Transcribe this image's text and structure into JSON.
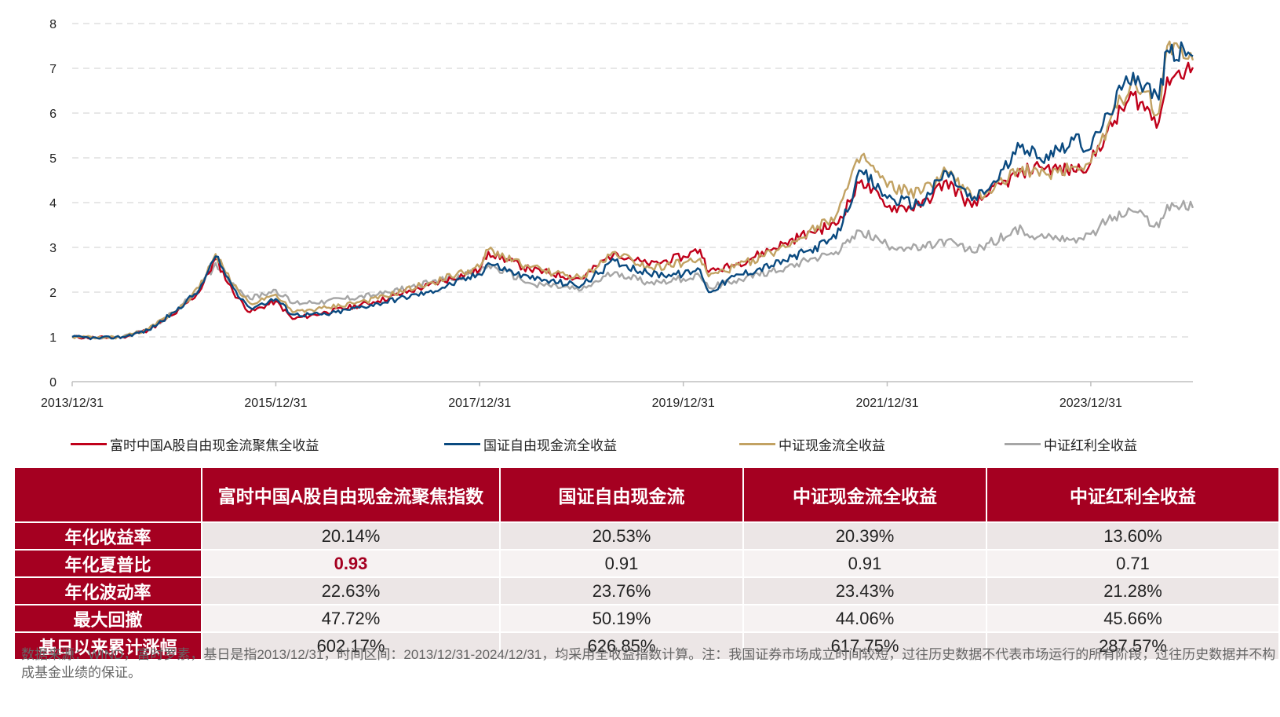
{
  "chart_data": {
    "type": "line",
    "ylim": [
      0,
      8
    ],
    "yticks": [
      0,
      1,
      2,
      3,
      4,
      5,
      6,
      7,
      8
    ],
    "xlim": [
      "2013/12/31",
      "2024/12/31"
    ],
    "xticks": [
      "2013/12/31",
      "2015/12/31",
      "2017/12/31",
      "2019/12/31",
      "2021/12/31",
      "2023/12/31"
    ],
    "grid": "horizontal-dashed",
    "legend_position": "bottom",
    "series": [
      {
        "name": "富时中国A股自由现金流聚焦全收益",
        "color": "#c0001a",
        "points": [
          [
            "2013/12/31",
            1.0
          ],
          [
            "2014/03/31",
            0.98
          ],
          [
            "2014/06/30",
            1.0
          ],
          [
            "2014/09/30",
            1.15
          ],
          [
            "2014/12/31",
            1.5
          ],
          [
            "2015/03/31",
            2.0
          ],
          [
            "2015/05/29",
            2.75
          ],
          [
            "2015/07/31",
            2.0
          ],
          [
            "2015/09/30",
            1.55
          ],
          [
            "2015/12/31",
            1.8
          ],
          [
            "2016/02/29",
            1.4
          ],
          [
            "2016/06/30",
            1.55
          ],
          [
            "2016/12/31",
            1.8
          ],
          [
            "2017/06/30",
            2.15
          ],
          [
            "2017/12/31",
            2.5
          ],
          [
            "2018/01/31",
            2.9
          ],
          [
            "2018/06/30",
            2.5
          ],
          [
            "2018/12/31",
            2.3
          ],
          [
            "2019/04/30",
            2.9
          ],
          [
            "2019/08/31",
            2.6
          ],
          [
            "2019/12/31",
            2.8
          ],
          [
            "2020/02/29",
            2.95
          ],
          [
            "2020/03/31",
            2.45
          ],
          [
            "2020/06/30",
            2.6
          ],
          [
            "2020/12/31",
            3.1
          ],
          [
            "2021/03/31",
            3.35
          ],
          [
            "2021/06/30",
            3.5
          ],
          [
            "2021/09/30",
            4.5
          ],
          [
            "2021/12/31",
            3.9
          ],
          [
            "2022/04/30",
            3.9
          ],
          [
            "2022/07/31",
            4.5
          ],
          [
            "2022/10/31",
            3.9
          ],
          [
            "2022/12/31",
            4.2
          ],
          [
            "2023/04/30",
            4.7
          ],
          [
            "2023/06/30",
            4.8
          ],
          [
            "2023/10/31",
            4.7
          ],
          [
            "2023/12/31",
            4.9
          ],
          [
            "2024/02/29",
            5.6
          ],
          [
            "2024/05/31",
            6.4
          ],
          [
            "2024/08/31",
            5.8
          ],
          [
            "2024/09/30",
            6.8
          ],
          [
            "2024/12/31",
            7.02
          ]
        ]
      },
      {
        "name": "国证自由现金流全收益",
        "color": "#0a4a80",
        "points": [
          [
            "2013/12/31",
            1.0
          ],
          [
            "2014/03/31",
            0.97
          ],
          [
            "2014/06/30",
            1.0
          ],
          [
            "2014/09/30",
            1.15
          ],
          [
            "2014/12/31",
            1.55
          ],
          [
            "2015/03/31",
            2.05
          ],
          [
            "2015/05/29",
            2.8
          ],
          [
            "2015/07/31",
            2.1
          ],
          [
            "2015/09/30",
            1.65
          ],
          [
            "2015/12/31",
            1.85
          ],
          [
            "2016/02/29",
            1.5
          ],
          [
            "2016/06/30",
            1.5
          ],
          [
            "2016/12/31",
            1.75
          ],
          [
            "2017/06/30",
            2.0
          ],
          [
            "2017/12/31",
            2.4
          ],
          [
            "2018/01/31",
            2.65
          ],
          [
            "2018/06/30",
            2.3
          ],
          [
            "2018/12/31",
            2.15
          ],
          [
            "2019/04/30",
            2.7
          ],
          [
            "2019/08/31",
            2.4
          ],
          [
            "2019/12/31",
            2.4
          ],
          [
            "2020/02/29",
            2.5
          ],
          [
            "2020/03/31",
            2.0
          ],
          [
            "2020/06/30",
            2.35
          ],
          [
            "2020/12/31",
            2.7
          ],
          [
            "2021/03/31",
            2.95
          ],
          [
            "2021/06/30",
            3.2
          ],
          [
            "2021/09/30",
            4.7
          ],
          [
            "2021/12/31",
            4.1
          ],
          [
            "2022/04/30",
            3.95
          ],
          [
            "2022/07/31",
            4.7
          ],
          [
            "2022/10/31",
            4.05
          ],
          [
            "2022/12/31",
            4.3
          ],
          [
            "2023/04/30",
            5.3
          ],
          [
            "2023/06/30",
            5.0
          ],
          [
            "2023/10/31",
            5.4
          ],
          [
            "2023/12/31",
            5.2
          ],
          [
            "2024/02/29",
            6.0
          ],
          [
            "2024/05/31",
            6.9
          ],
          [
            "2024/08/31",
            6.3
          ],
          [
            "2024/09/30",
            7.4
          ],
          [
            "2024/12/31",
            7.27
          ]
        ]
      },
      {
        "name": "中证现金流全收益",
        "color": "#c2a263",
        "points": [
          [
            "2013/12/31",
            1.0
          ],
          [
            "2014/03/31",
            0.98
          ],
          [
            "2014/06/30",
            1.0
          ],
          [
            "2014/09/30",
            1.17
          ],
          [
            "2014/12/31",
            1.55
          ],
          [
            "2015/03/31",
            2.1
          ],
          [
            "2015/05/29",
            2.85
          ],
          [
            "2015/07/31",
            2.15
          ],
          [
            "2015/09/30",
            1.75
          ],
          [
            "2015/12/31",
            1.95
          ],
          [
            "2016/02/29",
            1.55
          ],
          [
            "2016/06/30",
            1.65
          ],
          [
            "2016/12/31",
            1.85
          ],
          [
            "2017/06/30",
            2.2
          ],
          [
            "2017/12/31",
            2.55
          ],
          [
            "2018/01/31",
            2.95
          ],
          [
            "2018/06/30",
            2.55
          ],
          [
            "2018/12/31",
            2.3
          ],
          [
            "2019/04/30",
            2.9
          ],
          [
            "2019/08/31",
            2.55
          ],
          [
            "2019/12/31",
            2.65
          ],
          [
            "2020/02/29",
            2.75
          ],
          [
            "2020/03/31",
            2.35
          ],
          [
            "2020/06/30",
            2.55
          ],
          [
            "2020/12/31",
            3.0
          ],
          [
            "2021/03/31",
            3.4
          ],
          [
            "2021/06/30",
            3.7
          ],
          [
            "2021/09/30",
            5.05
          ],
          [
            "2021/12/31",
            4.35
          ],
          [
            "2022/04/30",
            4.2
          ],
          [
            "2022/07/31",
            4.7
          ],
          [
            "2022/10/31",
            4.1
          ],
          [
            "2022/12/31",
            4.25
          ],
          [
            "2023/04/30",
            4.8
          ],
          [
            "2023/06/30",
            4.6
          ],
          [
            "2023/10/31",
            4.8
          ],
          [
            "2023/12/31",
            4.9
          ],
          [
            "2024/02/29",
            5.7
          ],
          [
            "2024/05/31",
            6.8
          ],
          [
            "2024/08/31",
            6.0
          ],
          [
            "2024/09/30",
            7.5
          ],
          [
            "2024/12/31",
            7.18
          ]
        ]
      },
      {
        "name": "中证红利全收益",
        "color": "#a6a6a6",
        "points": [
          [
            "2013/12/31",
            1.0
          ],
          [
            "2014/03/31",
            0.97
          ],
          [
            "2014/06/30",
            1.0
          ],
          [
            "2014/09/30",
            1.17
          ],
          [
            "2014/12/31",
            1.55
          ],
          [
            "2015/03/31",
            2.05
          ],
          [
            "2015/05/29",
            2.65
          ],
          [
            "2015/07/31",
            2.2
          ],
          [
            "2015/09/30",
            1.85
          ],
          [
            "2015/12/31",
            2.05
          ],
          [
            "2016/02/29",
            1.75
          ],
          [
            "2016/06/30",
            1.8
          ],
          [
            "2016/12/31",
            1.95
          ],
          [
            "2017/06/30",
            2.2
          ],
          [
            "2017/12/31",
            2.45
          ],
          [
            "2018/01/31",
            2.6
          ],
          [
            "2018/06/30",
            2.2
          ],
          [
            "2018/12/31",
            2.05
          ],
          [
            "2019/04/30",
            2.45
          ],
          [
            "2019/08/31",
            2.2
          ],
          [
            "2019/12/31",
            2.3
          ],
          [
            "2020/02/29",
            2.35
          ],
          [
            "2020/03/31",
            2.1
          ],
          [
            "2020/06/30",
            2.25
          ],
          [
            "2020/12/31",
            2.55
          ],
          [
            "2021/03/31",
            2.75
          ],
          [
            "2021/06/30",
            2.9
          ],
          [
            "2021/09/30",
            3.35
          ],
          [
            "2021/12/31",
            3.05
          ],
          [
            "2022/04/30",
            2.95
          ],
          [
            "2022/07/31",
            3.15
          ],
          [
            "2022/10/31",
            2.9
          ],
          [
            "2022/12/31",
            3.1
          ],
          [
            "2023/04/30",
            3.4
          ],
          [
            "2023/06/30",
            3.25
          ],
          [
            "2023/10/31",
            3.2
          ],
          [
            "2023/12/31",
            3.3
          ],
          [
            "2024/02/29",
            3.6
          ],
          [
            "2024/05/31",
            3.8
          ],
          [
            "2024/08/31",
            3.45
          ],
          [
            "2024/09/30",
            3.95
          ],
          [
            "2024/12/31",
            3.88
          ]
        ]
      }
    ]
  },
  "table": {
    "headers": [
      "",
      "富时中国A股自由现金流聚焦指数",
      "国证自由现金流",
      "中证现金流全收益",
      "中证红利全收益"
    ],
    "rows": [
      {
        "label": "年化收益率",
        "values": [
          "20.14%",
          "20.53%",
          "20.39%",
          "13.60%"
        ]
      },
      {
        "label": "年化夏普比",
        "values": [
          "0.93",
          "0.91",
          "0.91",
          "0.71"
        ]
      },
      {
        "label": "年化波动率",
        "values": [
          "22.63%",
          "23.76%",
          "23.43%",
          "21.28%"
        ]
      },
      {
        "label": "最大回撤",
        "values": [
          "47.72%",
          "50.19%",
          "44.06%",
          "45.66%"
        ]
      },
      {
        "label": "基日以来累计涨幅",
        "values": [
          "602.17%",
          "626.85%",
          "617.75%",
          "287.57%"
        ]
      }
    ],
    "highlight_color": "#a50021",
    "header_color": "#a50021"
  },
  "footnote": "数据来源：WIND，富时罗素，基日是指2013/12/31，时间区间：2013/12/31-2024/12/31，均采用全收益指数计算。注：我国证券市场成立时间较短，过往历史数据不代表市场运行的所有阶段，过往历史数据并不构成基金业绩的保证。"
}
